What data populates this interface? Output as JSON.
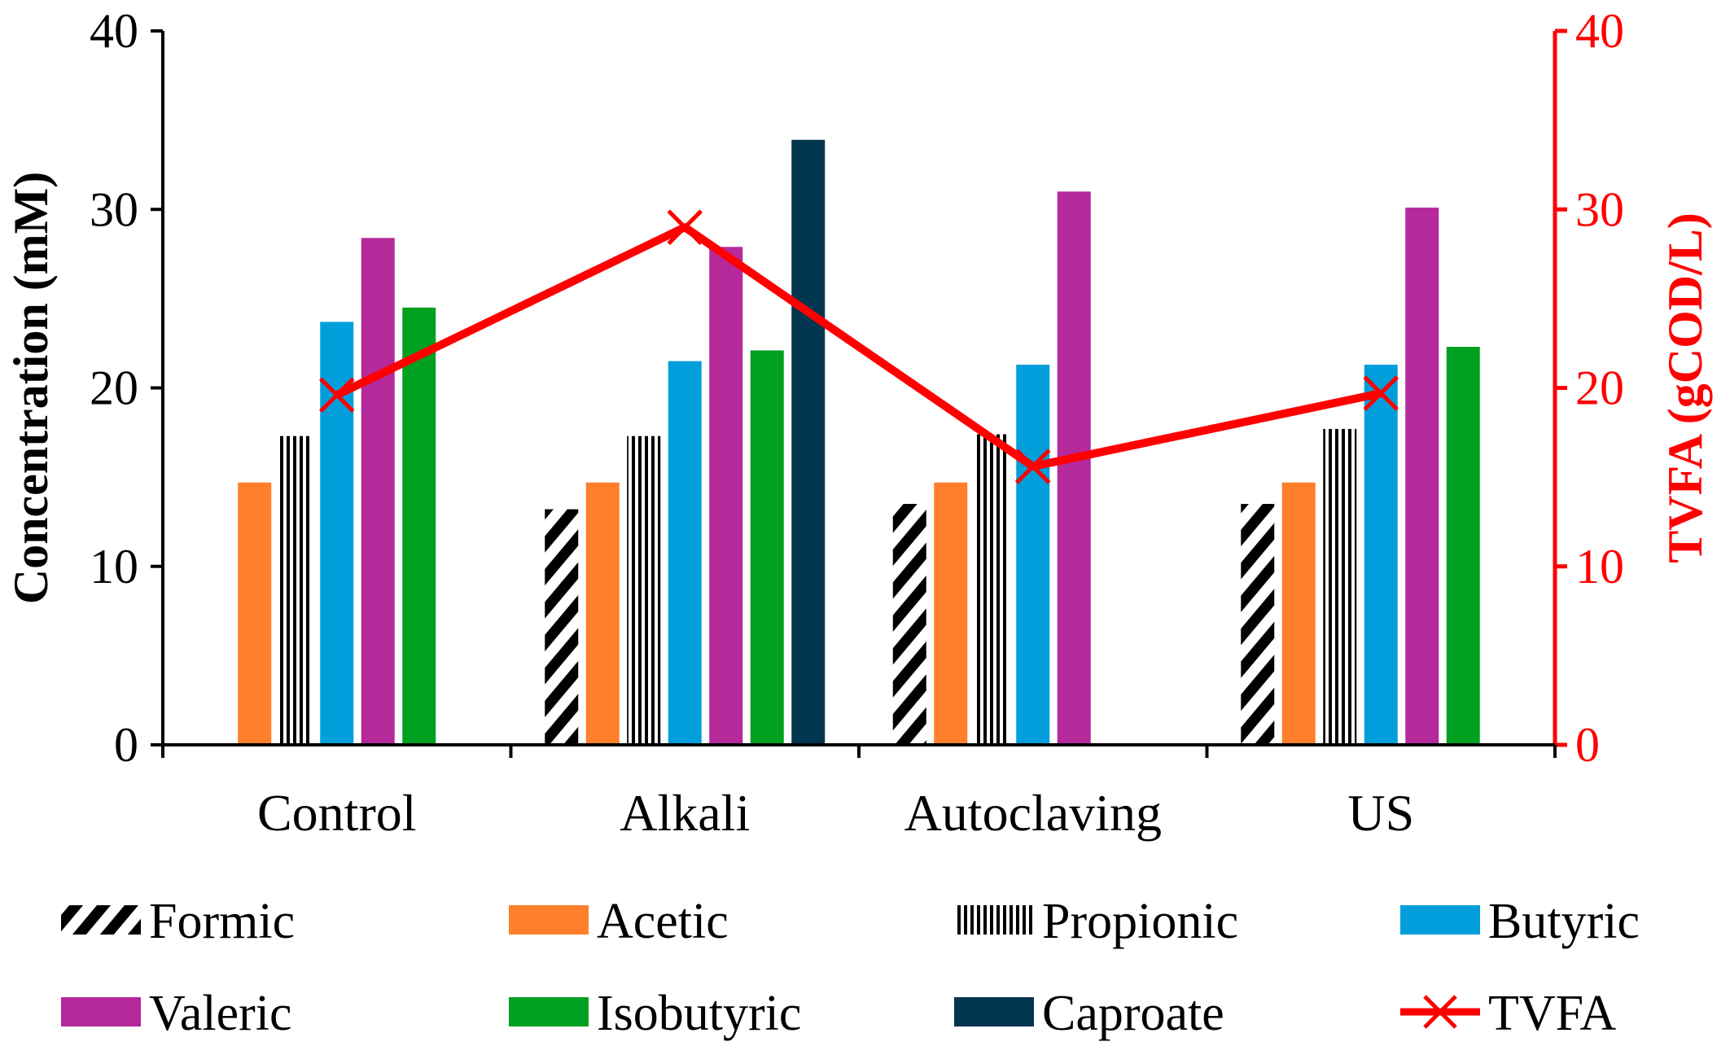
{
  "chart_data": {
    "type": "bar",
    "categories": [
      "Control",
      "Alkali",
      "Autoclaving",
      "US"
    ],
    "ylabel": "Concentration (mM)",
    "y2label": "TVFA (gCOD/L)",
    "ylim": [
      0,
      40
    ],
    "y2lim": [
      0,
      40
    ],
    "yticks": [
      "0",
      "10",
      "20",
      "30",
      "40"
    ],
    "y2ticks": [
      "0",
      "10",
      "20",
      "30",
      "40"
    ],
    "grid": false,
    "legend_position": "bottom",
    "series": [
      {
        "name": "Formic",
        "values": [
          0,
          13.2,
          13.5,
          13.5
        ],
        "color": "#000000",
        "pattern": "diagonal-stripes"
      },
      {
        "name": "Acetic",
        "values": [
          14.7,
          14.7,
          14.7,
          14.7
        ],
        "color": "#ff7f2a"
      },
      {
        "name": "Propionic",
        "values": [
          17.3,
          17.3,
          17.4,
          17.7
        ],
        "color": "#000000",
        "pattern": "vertical-stripes"
      },
      {
        "name": "Butyric",
        "values": [
          23.7,
          21.5,
          21.3,
          21.3
        ],
        "color": "#009fdb"
      },
      {
        "name": "Valeric",
        "values": [
          28.4,
          27.9,
          31.0,
          30.1
        ],
        "color": "#b5299b"
      },
      {
        "name": "Isobutyric",
        "values": [
          24.5,
          22.1,
          0,
          22.3
        ],
        "color": "#00a020"
      },
      {
        "name": "Caproate",
        "values": [
          0,
          33.9,
          0,
          0
        ],
        "color": "#00364f"
      }
    ],
    "line_series": {
      "name": "TVFA",
      "axis": "right",
      "values": [
        19.6,
        29.0,
        15.6,
        19.7
      ],
      "color": "#ff0000",
      "marker": "x"
    }
  }
}
